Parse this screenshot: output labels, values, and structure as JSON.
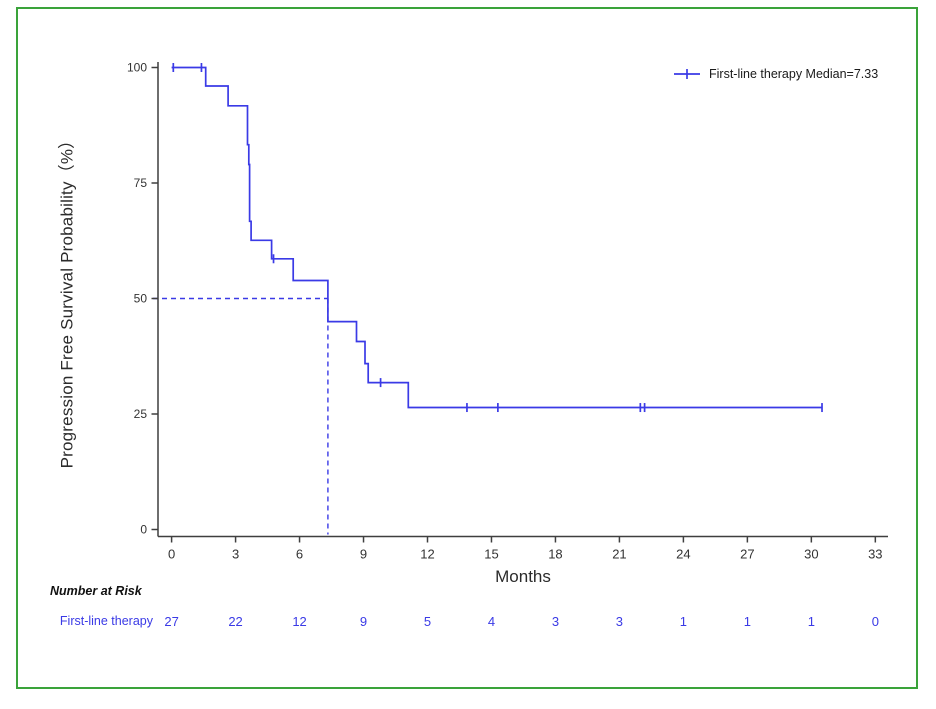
{
  "colors": {
    "series_blue": "#3a3ae6",
    "axis": "#3f3f3f",
    "tick_text": "#333333",
    "frame_green": "#3aa33a",
    "legend_text": "#1a1a1a"
  },
  "chart_data": {
    "type": "line",
    "subtype": "kaplan-meier-step",
    "title": "",
    "xlabel": "Months",
    "ylabel": "Progression Free Survival Probability（%）",
    "xlim": [
      0,
      33
    ],
    "ylim": [
      0,
      100
    ],
    "xticks": [
      0,
      3,
      6,
      9,
      12,
      15,
      18,
      21,
      24,
      27,
      30,
      33
    ],
    "yticks": [
      0,
      25,
      50,
      75,
      100
    ],
    "grid": false,
    "legend_position": "top-right",
    "legend_label": "First-line therapy Median=7.33",
    "series": [
      {
        "name": "First-line therapy",
        "median": 7.33,
        "steps": [
          [
            0,
            100
          ],
          [
            1.6,
            100
          ],
          [
            1.6,
            96
          ],
          [
            2.65,
            96
          ],
          [
            2.65,
            91.7
          ],
          [
            3.56,
            91.7
          ],
          [
            3.56,
            83.3
          ],
          [
            3.62,
            83.3
          ],
          [
            3.62,
            79
          ],
          [
            3.66,
            79
          ],
          [
            3.66,
            66.7
          ],
          [
            3.73,
            66.7
          ],
          [
            3.73,
            62.6
          ],
          [
            4.69,
            62.6
          ],
          [
            4.69,
            58.6
          ],
          [
            5.7,
            58.6
          ],
          [
            5.7,
            53.9
          ],
          [
            7.33,
            53.9
          ],
          [
            7.33,
            45
          ],
          [
            8.67,
            45
          ],
          [
            8.67,
            40.7
          ],
          [
            9.07,
            40.7
          ],
          [
            9.07,
            35.9
          ],
          [
            9.22,
            35.9
          ],
          [
            9.22,
            31.8
          ],
          [
            11.1,
            31.8
          ],
          [
            11.1,
            26.4
          ],
          [
            30.5,
            26.4
          ]
        ],
        "censors": [
          [
            0.08,
            100
          ],
          [
            1.4,
            100
          ],
          [
            4.78,
            58.6
          ],
          [
            9.8,
            31.8
          ],
          [
            13.85,
            26.4
          ],
          [
            15.3,
            26.4
          ],
          [
            21.98,
            26.4
          ],
          [
            22.18,
            26.4
          ],
          [
            30.5,
            26.4
          ]
        ]
      }
    ],
    "median_reference": {
      "x": 7.33,
      "y": 50,
      "style": "dashed"
    }
  },
  "risk_table": {
    "title": "Number at Risk",
    "rows": [
      {
        "label": "First-line therapy",
        "values": [
          "27",
          "22",
          "12",
          "9",
          "5",
          "4",
          "3",
          "3",
          "1",
          "1",
          "1",
          "0"
        ]
      }
    ]
  }
}
